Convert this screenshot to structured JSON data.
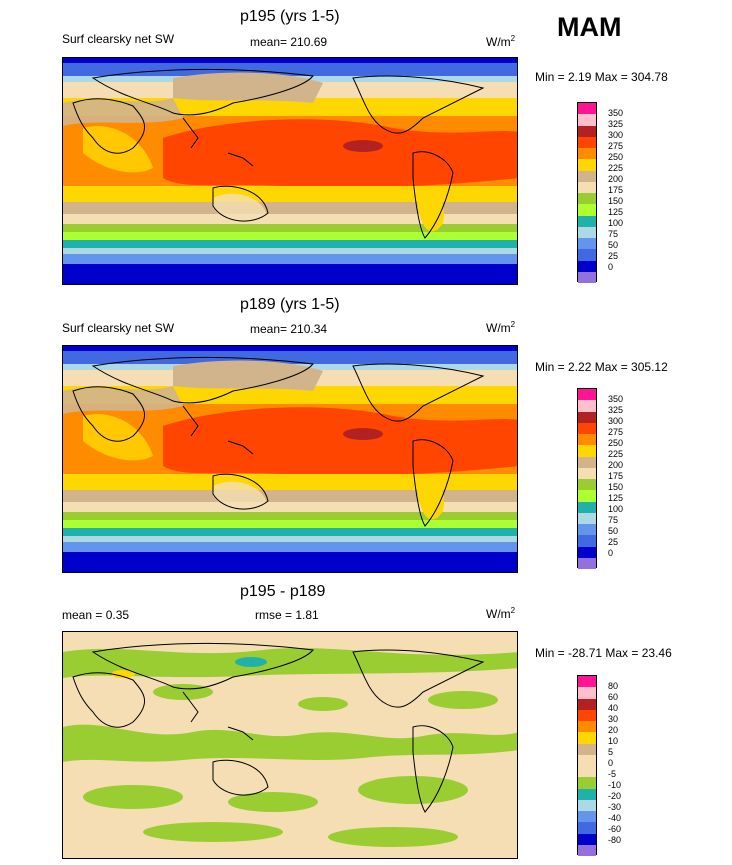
{
  "season": "MAM",
  "panels": [
    {
      "title": "p195 (yrs 1-5)",
      "left": "Surf clearsky net SW",
      "center": "mean= 210.69",
      "unit": "W/m",
      "unit_sup": "2",
      "minmax": "Min =   2.19 Max = 304.78",
      "colorbar_labels": [
        "350",
        "325",
        "300",
        "275",
        "250",
        "225",
        "200",
        "175",
        "150",
        "125",
        "100",
        "75",
        "50",
        "25",
        "0"
      ]
    },
    {
      "title": "p189 (yrs 1-5)",
      "left": "Surf clearsky net SW",
      "center": "mean= 210.34",
      "unit": "W/m",
      "unit_sup": "2",
      "minmax": "Min =   2.22 Max = 305.12",
      "colorbar_labels": [
        "350",
        "325",
        "300",
        "275",
        "250",
        "225",
        "200",
        "175",
        "150",
        "125",
        "100",
        "75",
        "50",
        "25",
        "0"
      ]
    },
    {
      "title": "p195 - p189",
      "left": "mean =   0.35",
      "center": "rmse =   1.81",
      "unit": "W/m",
      "unit_sup": "2",
      "minmax": "Min = -28.71 Max =  23.46",
      "colorbar_labels": [
        "80",
        "60",
        "40",
        "30",
        "20",
        "10",
        "5",
        "0",
        "-5",
        "-10",
        "-20",
        "-30",
        "-40",
        "-60",
        "-80"
      ]
    }
  ],
  "colors": {
    "field_scale": [
      "#ff1493",
      "#ffc0cb",
      "#b22222",
      "#ff4500",
      "#ff8c00",
      "#ffd700",
      "#d2b48c",
      "#f5deb3",
      "#9acd32",
      "#adff2f",
      "#20b2aa",
      "#add8e6",
      "#6495ed",
      "#4169e1",
      "#0000cd",
      "#9370db"
    ],
    "diff_scale": [
      "#ff1493",
      "#ffc0cb",
      "#b22222",
      "#ff4500",
      "#ff8c00",
      "#ffd700",
      "#d2b48c",
      "#f5deb3",
      "#f5deb3",
      "#9acd32",
      "#20b2aa",
      "#add8e6",
      "#6495ed",
      "#4169e1",
      "#0000cd",
      "#9370db"
    ]
  }
}
